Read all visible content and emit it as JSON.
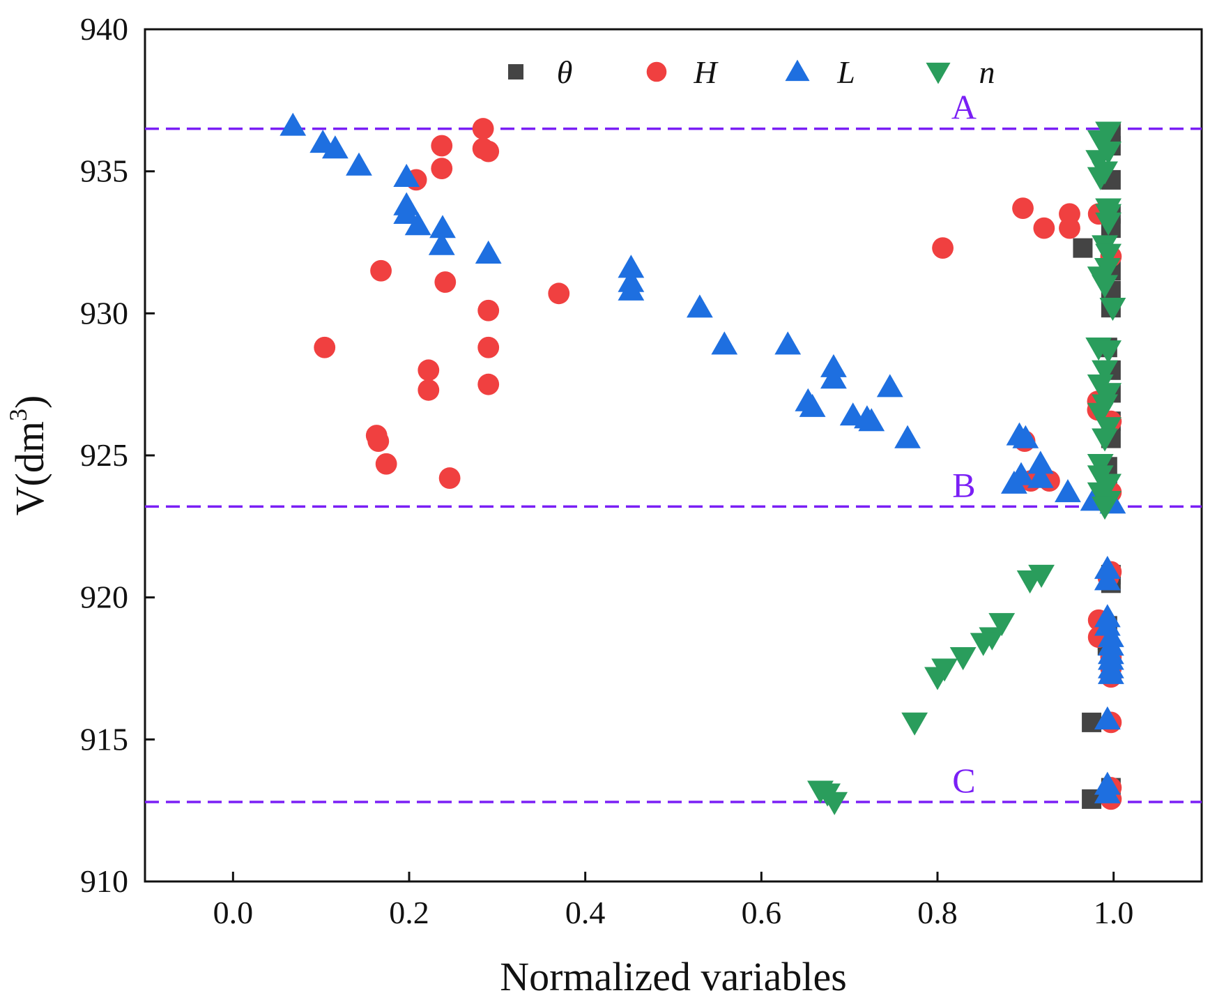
{
  "chart_data": {
    "type": "scatter",
    "title": "",
    "xlabel": "Normalized variables",
    "ylabel_main": "V(dm",
    "ylabel_sup": "3",
    "ylabel_close": ")",
    "xlim": [
      -0.1,
      1.1
    ],
    "ylim": [
      910,
      940
    ],
    "xticks": [
      0.0,
      0.2,
      0.4,
      0.6,
      0.8,
      1.0
    ],
    "xtick_labels": [
      "0.0",
      "0.2",
      "0.4",
      "0.6",
      "0.8",
      "1.0"
    ],
    "yticks": [
      910,
      915,
      920,
      925,
      930,
      935,
      940
    ],
    "ytick_labels": [
      "910",
      "915",
      "920",
      "925",
      "930",
      "935",
      "940"
    ],
    "grid": false,
    "legend_position": "top-center",
    "reference_lines": [
      {
        "label": "A",
        "y": 936.5,
        "color": "#7a1ff5",
        "label_x": 0.83
      },
      {
        "label": "B",
        "y": 923.2,
        "color": "#7a1ff5",
        "label_x": 0.83
      },
      {
        "label": "C",
        "y": 912.8,
        "color": "#7a1ff5",
        "label_x": 0.83
      }
    ],
    "series": [
      {
        "name": "θ",
        "marker": "square",
        "color": "#444444",
        "points": [
          [
            0.997,
            936.4
          ],
          [
            0.997,
            935.9
          ],
          [
            0.997,
            934.7
          ],
          [
            0.997,
            933.5
          ],
          [
            0.997,
            933.0
          ],
          [
            0.965,
            932.3
          ],
          [
            0.997,
            931.5
          ],
          [
            0.997,
            930.8
          ],
          [
            0.997,
            930.2
          ],
          [
            0.993,
            928.8
          ],
          [
            0.997,
            928.0
          ],
          [
            0.997,
            927.2
          ],
          [
            0.997,
            926.2
          ],
          [
            0.997,
            925.6
          ],
          [
            0.993,
            924.6
          ],
          [
            0.993,
            924.0
          ],
          [
            0.993,
            923.4
          ],
          [
            0.997,
            920.8
          ],
          [
            0.997,
            920.5
          ],
          [
            0.993,
            919.0
          ],
          [
            0.993,
            918.5
          ],
          [
            0.993,
            918.3
          ],
          [
            0.975,
            915.6
          ],
          [
            0.997,
            913.3
          ],
          [
            0.975,
            912.9
          ]
        ]
      },
      {
        "name": "H",
        "marker": "circle",
        "color": "#f04040",
        "points": [
          [
            0.284,
            936.5
          ],
          [
            0.237,
            935.9
          ],
          [
            0.284,
            935.8
          ],
          [
            0.29,
            935.7
          ],
          [
            0.237,
            935.1
          ],
          [
            0.208,
            934.7
          ],
          [
            0.897,
            933.7
          ],
          [
            0.95,
            933.5
          ],
          [
            0.983,
            933.5
          ],
          [
            0.921,
            933.0
          ],
          [
            0.95,
            933.0
          ],
          [
            0.806,
            932.3
          ],
          [
            0.997,
            932.0
          ],
          [
            0.168,
            931.5
          ],
          [
            0.241,
            931.1
          ],
          [
            0.37,
            930.7
          ],
          [
            0.29,
            930.1
          ],
          [
            0.104,
            928.8
          ],
          [
            0.29,
            928.8
          ],
          [
            0.222,
            928.0
          ],
          [
            0.29,
            927.5
          ],
          [
            0.222,
            927.3
          ],
          [
            0.982,
            926.9
          ],
          [
            0.982,
            926.6
          ],
          [
            0.997,
            926.2
          ],
          [
            0.163,
            925.7
          ],
          [
            0.165,
            925.5
          ],
          [
            0.899,
            925.5
          ],
          [
            0.174,
            924.7
          ],
          [
            0.906,
            924.1
          ],
          [
            0.927,
            924.1
          ],
          [
            0.246,
            924.2
          ],
          [
            0.997,
            923.7
          ],
          [
            0.997,
            920.9
          ],
          [
            0.994,
            920.7
          ],
          [
            0.983,
            919.2
          ],
          [
            0.983,
            918.6
          ],
          [
            0.997,
            917.9
          ],
          [
            0.997,
            917.5
          ],
          [
            0.997,
            917.2
          ],
          [
            0.997,
            915.6
          ],
          [
            0.997,
            913.3
          ],
          [
            0.997,
            912.9
          ]
        ]
      },
      {
        "name": "L",
        "marker": "triangle-up",
        "color": "#1e6fe0",
        "points": [
          [
            0.068,
            936.6
          ],
          [
            0.102,
            936.0
          ],
          [
            0.116,
            935.8
          ],
          [
            0.143,
            935.2
          ],
          [
            0.197,
            934.8
          ],
          [
            0.197,
            933.8
          ],
          [
            0.197,
            933.5
          ],
          [
            0.21,
            933.1
          ],
          [
            0.238,
            933.0
          ],
          [
            0.237,
            932.4
          ],
          [
            0.29,
            932.1
          ],
          [
            0.452,
            931.6
          ],
          [
            0.452,
            931.1
          ],
          [
            0.452,
            930.8
          ],
          [
            0.53,
            930.2
          ],
          [
            0.558,
            928.9
          ],
          [
            0.63,
            928.9
          ],
          [
            0.682,
            928.1
          ],
          [
            0.682,
            927.7
          ],
          [
            0.746,
            927.4
          ],
          [
            0.653,
            926.9
          ],
          [
            0.658,
            926.7
          ],
          [
            0.704,
            926.4
          ],
          [
            0.72,
            926.3
          ],
          [
            0.725,
            926.2
          ],
          [
            0.893,
            925.7
          ],
          [
            0.9,
            925.6
          ],
          [
            0.766,
            925.6
          ],
          [
            0.917,
            924.7
          ],
          [
            0.895,
            924.3
          ],
          [
            0.917,
            924.2
          ],
          [
            0.887,
            924.0
          ],
          [
            0.948,
            923.7
          ],
          [
            0.977,
            923.4
          ],
          [
            0.999,
            923.3
          ],
          [
            0.993,
            921.0
          ],
          [
            0.993,
            920.6
          ],
          [
            0.993,
            919.3
          ],
          [
            0.993,
            919.0
          ],
          [
            0.997,
            918.6
          ],
          [
            0.997,
            918.3
          ],
          [
            0.997,
            918.0
          ],
          [
            0.997,
            917.8
          ],
          [
            0.997,
            917.5
          ],
          [
            0.997,
            917.3
          ],
          [
            0.993,
            915.7
          ],
          [
            0.993,
            913.4
          ],
          [
            0.993,
            913.1
          ]
        ]
      },
      {
        "name": "n",
        "marker": "triangle-down",
        "color": "#2a9d5c",
        "points": [
          [
            0.994,
            936.4
          ],
          [
            0.985,
            936.1
          ],
          [
            0.994,
            935.7
          ],
          [
            0.983,
            935.4
          ],
          [
            0.99,
            935.0
          ],
          [
            0.985,
            934.8
          ],
          [
            0.994,
            933.7
          ],
          [
            0.994,
            933.5
          ],
          [
            0.994,
            933.2
          ],
          [
            0.99,
            932.4
          ],
          [
            0.994,
            932.1
          ],
          [
            0.993,
            931.6
          ],
          [
            0.985,
            931.3
          ],
          [
            0.99,
            931.0
          ],
          [
            0.999,
            930.2
          ],
          [
            0.983,
            928.8
          ],
          [
            0.994,
            928.7
          ],
          [
            0.99,
            928.0
          ],
          [
            0.985,
            927.5
          ],
          [
            0.994,
            927.2
          ],
          [
            0.99,
            926.8
          ],
          [
            0.985,
            926.5
          ],
          [
            0.994,
            926.0
          ],
          [
            0.99,
            925.6
          ],
          [
            0.985,
            924.7
          ],
          [
            0.985,
            924.3
          ],
          [
            0.994,
            924.0
          ],
          [
            0.985,
            923.7
          ],
          [
            0.994,
            923.4
          ],
          [
            0.99,
            923.2
          ],
          [
            0.905,
            920.6
          ],
          [
            0.918,
            920.8
          ],
          [
            0.873,
            919.1
          ],
          [
            0.862,
            918.6
          ],
          [
            0.852,
            918.4
          ],
          [
            0.829,
            917.9
          ],
          [
            0.808,
            917.5
          ],
          [
            0.8,
            917.2
          ],
          [
            0.774,
            915.6
          ],
          [
            0.667,
            913.2
          ],
          [
            0.675,
            913.1
          ],
          [
            0.683,
            912.8
          ]
        ]
      }
    ]
  }
}
